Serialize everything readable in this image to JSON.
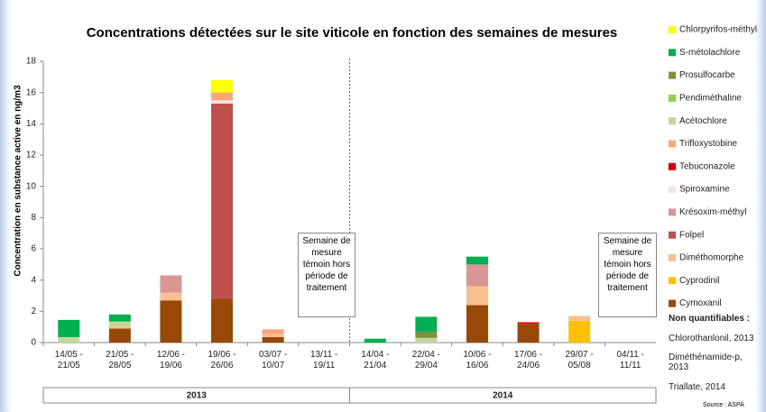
{
  "chart_data": {
    "type": "bar",
    "stacked": true,
    "title": "Concentrations détectées sur le site viticole en fonction des semaines de mesures",
    "y_label": "Concentration en substance active en ng/m3",
    "categories": [
      "14/05 - 21/05",
      "21/05 - 28/05",
      "12/06 - 19/06",
      "19/06 - 26/06",
      "03/07 - 10/07",
      "13/11 - 19/11",
      "14/04 - 21/04",
      "22/04 - 29/04",
      "10/06 - 16/06",
      "17/06 - 24/06",
      "29/07 - 05/08",
      "04/11 - 11/11"
    ],
    "groups": [
      {
        "label": "2013",
        "count": 6
      },
      {
        "label": "2014",
        "count": 6
      }
    ],
    "series": [
      {
        "name": "Chlorpyrifos-méthyl",
        "color": "#ffff00",
        "values": [
          0,
          0,
          0,
          0.8,
          0,
          0,
          0,
          0,
          0,
          0,
          0,
          0
        ]
      },
      {
        "name": "S-métolachlore",
        "color": "#00b050",
        "values": [
          1.1,
          0.45,
          0,
          0,
          0,
          0,
          0.25,
          0.95,
          0.5,
          0,
          0,
          0
        ]
      },
      {
        "name": "Prosulfocarbe",
        "color": "#77933c",
        "values": [
          0,
          0,
          0,
          0,
          0,
          0,
          0,
          0.4,
          0,
          0,
          0,
          0
        ]
      },
      {
        "name": "Pendiméthaline",
        "color": "#92d050",
        "values": [
          0,
          0,
          0,
          0,
          0,
          0,
          0,
          0,
          0,
          0,
          0,
          0
        ]
      },
      {
        "name": "Acétochlore",
        "color": "#c4d79b",
        "values": [
          0.35,
          0.35,
          0,
          0,
          0,
          0,
          0,
          0.3,
          0,
          0,
          0,
          0
        ]
      },
      {
        "name": "Trifloxystobine",
        "color": "#f9a57e",
        "values": [
          0,
          0,
          0,
          0.5,
          0.3,
          0,
          0,
          0,
          0,
          0,
          0,
          0
        ]
      },
      {
        "name": "Tebuconazole",
        "color": "#e00000",
        "values": [
          0,
          0,
          0,
          0,
          0,
          0,
          0,
          0,
          0,
          0.1,
          0,
          0
        ]
      },
      {
        "name": "Spiroxamine",
        "color": "#f2e4e4",
        "values": [
          0,
          0,
          0,
          0.2,
          0,
          0,
          0,
          0,
          0,
          0,
          0,
          0
        ]
      },
      {
        "name": "Krésoxim-méthyl",
        "color": "#d99694",
        "values": [
          0,
          0,
          1.1,
          0,
          0,
          0,
          0,
          0,
          1.4,
          0,
          0,
          0
        ]
      },
      {
        "name": "Folpel",
        "color": "#c0504d",
        "values": [
          0,
          0,
          0,
          12.5,
          0,
          0,
          0,
          0,
          0,
          0,
          0,
          0
        ]
      },
      {
        "name": "Diméthomorphe",
        "color": "#fac090",
        "values": [
          0,
          0.1,
          0.5,
          0,
          0.2,
          0,
          0,
          0,
          1.2,
          0,
          0.3,
          0
        ]
      },
      {
        "name": "Cyprodinil",
        "color": "#ffc000",
        "values": [
          0,
          0,
          0,
          0,
          0,
          0,
          0,
          0,
          0,
          0,
          1.4,
          0
        ]
      },
      {
        "name": "Cymoxanil",
        "color": "#984807",
        "values": [
          0,
          0.9,
          2.7,
          2.8,
          0.35,
          0,
          0,
          0,
          2.4,
          1.2,
          0,
          0
        ]
      }
    ],
    "ylim": [
      0,
      18
    ],
    "yticks": [
      0,
      2,
      4,
      6,
      8,
      10,
      12,
      14,
      16,
      18
    ],
    "grid": false,
    "annotations": [
      "Semaine de mesure témoin hors période de traitement",
      "Semaine de mesure témoin hors période de traitement"
    ],
    "non_quantifiable_title": "Non quantifiables :",
    "non_quantifiable": [
      "Chlorothanlonil, 2013",
      "Diméthénamide-p, 2013",
      "Triallate, 2014"
    ],
    "source": "Source : ASPA"
  }
}
